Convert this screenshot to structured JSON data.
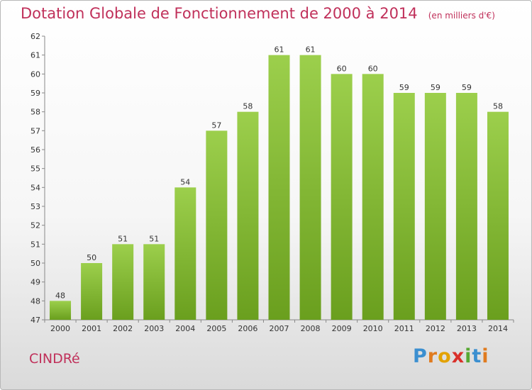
{
  "chart_data": {
    "type": "bar",
    "title": "Dotation Globale de Fonctionnement de 2000 à 2014",
    "unit_note": "(en milliers d'€)",
    "categories": [
      "2000",
      "2001",
      "2002",
      "2003",
      "2004",
      "2005",
      "2006",
      "2007",
      "2008",
      "2009",
      "2010",
      "2011",
      "2012",
      "2013",
      "2014"
    ],
    "values": [
      48,
      50,
      51,
      51,
      54,
      57,
      58,
      61,
      61,
      60,
      60,
      59,
      59,
      59,
      58
    ],
    "data_labels": [
      "48",
      "50",
      "51",
      "51",
      "54",
      "57",
      "58",
      "61",
      "61",
      "60",
      "60",
      "59",
      "59",
      "59",
      "58"
    ],
    "yticks": [
      "47",
      "48",
      "49",
      "50",
      "51",
      "52",
      "53",
      "54",
      "55",
      "56",
      "57",
      "58",
      "59",
      "60",
      "61",
      "62"
    ],
    "ylim": [
      47,
      62
    ],
    "xlabel": "",
    "ylabel": "",
    "grid": false,
    "colors": {
      "bar_top": "#9ccf4c",
      "bar_bottom": "#6a9f1e",
      "title": "#c0305a"
    }
  },
  "footer": {
    "commune": "CINDRé",
    "logo_letters": [
      "P",
      "r",
      "o",
      "x",
      "i",
      "t",
      "i"
    ],
    "logo_colors": [
      "#3b8fd0",
      "#e07b1f",
      "#e3a200",
      "#d9302a",
      "#57a832",
      "#3b8fd0",
      "#e07b1f"
    ]
  }
}
